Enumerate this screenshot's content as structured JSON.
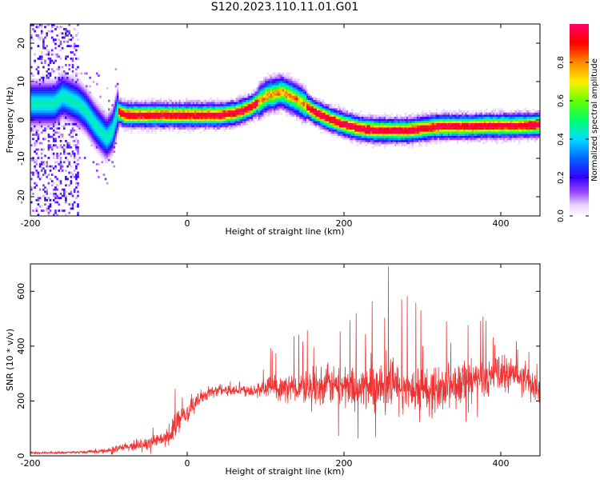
{
  "title": "S120.2023.110.11.01.G01",
  "chart_data": [
    {
      "type": "heatmap",
      "xlabel": "Height of straight line (km)",
      "ylabel": "Frequency (Hz)",
      "xlim": [
        -200,
        450
      ],
      "ylim": [
        -25,
        25
      ],
      "x_ticks": [
        "-200",
        "0",
        "200",
        "400"
      ],
      "y_ticks": [
        "-20",
        "-10",
        "0",
        "10",
        "20"
      ],
      "colorbar": {
        "label": "Normalized spectral amplitude",
        "range": [
          0,
          1
        ],
        "ticks": [
          "0.0",
          "0.2",
          "0.4",
          "0.6",
          "0.8"
        ]
      },
      "ridge": {
        "x": [
          -170,
          -160,
          -150,
          -140,
          -130,
          -120,
          -112,
          -104,
          -96,
          -90,
          -80,
          -60,
          -40,
          -20,
          0,
          20,
          40,
          60,
          80,
          100,
          120,
          140,
          160,
          180,
          200,
          220,
          240,
          260,
          280,
          300,
          320,
          340,
          360,
          380,
          400,
          420,
          450
        ],
        "freq": [
          4,
          6,
          5,
          4,
          2,
          -1,
          -3,
          -5,
          -3,
          2,
          1,
          1,
          1,
          1,
          1,
          1,
          1,
          1.5,
          3,
          6,
          7,
          5,
          2,
          0,
          -1.5,
          -2.5,
          -3,
          -3,
          -3,
          -2.5,
          -2,
          -2,
          -2,
          -1.8,
          -1.8,
          -1.8,
          -1.5
        ]
      }
    },
    {
      "type": "line",
      "xlabel": "Height of straight line (km)",
      "ylabel": "SNR (10 * v/v)",
      "xlim": [
        -200,
        450
      ],
      "ylim": [
        0,
        700
      ],
      "x_ticks": [
        "-200",
        "0",
        "200",
        "400"
      ],
      "y_ticks": [
        "0",
        "200",
        "400",
        "600"
      ],
      "color": "#ee3333",
      "envelope": {
        "x": [
          -200,
          -150,
          -120,
          -100,
          -80,
          -60,
          -40,
          -30,
          -20,
          -15,
          -10,
          0,
          10,
          20,
          40,
          60,
          80,
          100,
          120,
          140,
          160,
          180,
          200,
          220,
          240,
          260,
          280,
          300,
          320,
          340,
          360,
          380,
          400,
          420,
          440,
          450
        ],
        "mean": [
          10,
          12,
          15,
          20,
          30,
          40,
          55,
          60,
          70,
          120,
          130,
          150,
          190,
          220,
          240,
          240,
          240,
          240,
          245,
          250,
          255,
          260,
          255,
          250,
          250,
          250,
          240,
          235,
          240,
          250,
          270,
          290,
          300,
          290,
          260,
          240
        ],
        "noise": [
          4,
          5,
          8,
          12,
          20,
          25,
          30,
          35,
          40,
          70,
          50,
          40,
          35,
          30,
          25,
          25,
          30,
          45,
          55,
          70,
          80,
          90,
          95,
          100,
          110,
          120,
          120,
          115,
          110,
          100,
          95,
          90,
          90,
          80,
          70,
          60
        ],
        "spike": [
          2,
          3,
          8,
          12,
          15,
          20,
          30,
          40,
          60,
          80,
          60,
          40,
          30,
          20,
          20,
          25,
          60,
          80,
          120,
          150,
          180,
          200,
          200,
          210,
          240,
          260,
          250,
          220,
          200,
          170,
          150,
          160,
          180,
          150,
          120,
          80
        ]
      }
    }
  ]
}
